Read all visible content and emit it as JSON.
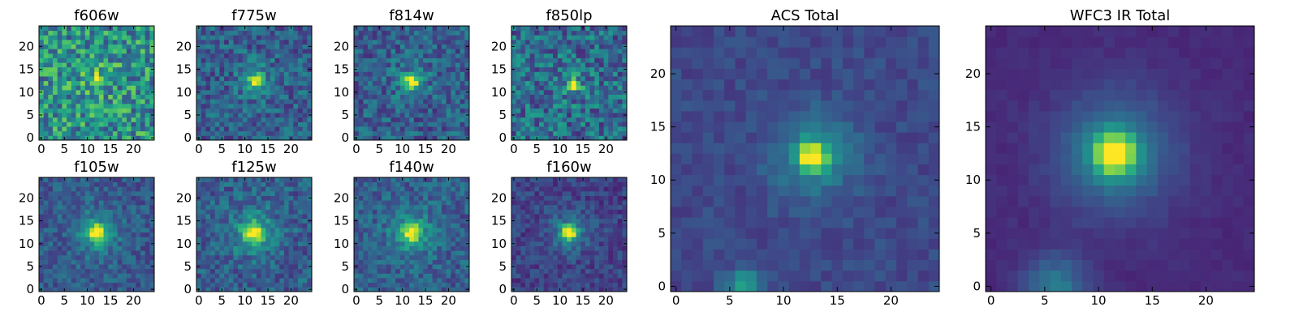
{
  "figure": {
    "background": "#ffffff",
    "colormap": "viridis",
    "colormap_stops": [
      "#440154",
      "#482878",
      "#3e4a89",
      "#31688e",
      "#26828e",
      "#1f9e89",
      "#35b779",
      "#6ece58",
      "#b5de2b",
      "#fde725"
    ]
  },
  "chart_data": [
    {
      "type": "heatmap",
      "title": "f606w",
      "grid_size": 25,
      "noise": 0.55,
      "base": 0.5,
      "source": {
        "x": 12,
        "y": 12.5,
        "amp": 0.5,
        "sigma": 1.0
      },
      "halo": {
        "amp": 0.08,
        "sigma": 3.5
      },
      "xticks": [
        "0",
        "5",
        "10",
        "15",
        "20"
      ],
      "yticks": [
        "0",
        "5",
        "10",
        "15",
        "20"
      ],
      "xlim": [
        -0.5,
        24.5
      ],
      "ylim": [
        -0.5,
        24.5
      ]
    },
    {
      "type": "heatmap",
      "title": "f775w",
      "grid_size": 25,
      "noise": 0.35,
      "base": 0.3,
      "source": {
        "x": 12.5,
        "y": 12.5,
        "amp": 0.7,
        "sigma": 1.0
      },
      "halo": {
        "amp": 0.15,
        "sigma": 3.0
      },
      "xticks": [
        "0",
        "5",
        "10",
        "15",
        "20"
      ],
      "yticks": [
        "0",
        "5",
        "10",
        "15",
        "20"
      ],
      "xlim": [
        -0.5,
        24.5
      ],
      "ylim": [
        -0.5,
        24.5
      ]
    },
    {
      "type": "heatmap",
      "title": "f814w",
      "grid_size": 25,
      "noise": 0.35,
      "base": 0.3,
      "source": {
        "x": 12,
        "y": 12.5,
        "amp": 0.7,
        "sigma": 1.0
      },
      "halo": {
        "amp": 0.15,
        "sigma": 3.0
      },
      "xticks": [
        "0",
        "5",
        "10",
        "15",
        "20"
      ],
      "yticks": [
        "0",
        "5",
        "10",
        "15",
        "20"
      ],
      "xlim": [
        -0.5,
        24.5
      ],
      "ylim": [
        -0.5,
        24.5
      ]
    },
    {
      "type": "heatmap",
      "title": "f850lp",
      "grid_size": 25,
      "noise": 0.45,
      "base": 0.35,
      "source": {
        "x": 13,
        "y": 11.5,
        "amp": 0.65,
        "sigma": 0.8
      },
      "halo": {
        "amp": 0.12,
        "sigma": 2.5
      },
      "xticks": [
        "0",
        "5",
        "10",
        "15",
        "20"
      ],
      "yticks": [
        "0",
        "5",
        "10",
        "15",
        "20"
      ],
      "xlim": [
        -0.5,
        24.5
      ],
      "ylim": [
        -0.5,
        24.5
      ]
    },
    {
      "type": "heatmap",
      "title": "f105w",
      "grid_size": 25,
      "noise": 0.25,
      "base": 0.28,
      "source": {
        "x": 12,
        "y": 12.5,
        "amp": 0.6,
        "sigma": 1.2
      },
      "halo": {
        "amp": 0.25,
        "sigma": 3.5
      },
      "xticks": [
        "0",
        "5",
        "10",
        "15",
        "20"
      ],
      "yticks": [
        "0",
        "5",
        "10",
        "15",
        "20"
      ],
      "xlim": [
        -0.5,
        24.5
      ],
      "ylim": [
        -0.5,
        24.5
      ]
    },
    {
      "type": "heatmap",
      "title": "f125w",
      "grid_size": 25,
      "noise": 0.3,
      "base": 0.3,
      "source": {
        "x": 12,
        "y": 12.5,
        "amp": 0.6,
        "sigma": 1.3
      },
      "halo": {
        "amp": 0.25,
        "sigma": 3.5
      },
      "xticks": [
        "0",
        "5",
        "10",
        "15",
        "20"
      ],
      "yticks": [
        "0",
        "5",
        "10",
        "15",
        "20"
      ],
      "xlim": [
        -0.5,
        24.5
      ],
      "ylim": [
        -0.5,
        24.5
      ]
    },
    {
      "type": "heatmap",
      "title": "f140w",
      "grid_size": 25,
      "noise": 0.28,
      "base": 0.3,
      "source": {
        "x": 12,
        "y": 12.5,
        "amp": 0.6,
        "sigma": 1.2
      },
      "halo": {
        "amp": 0.25,
        "sigma": 3.5
      },
      "xticks": [
        "0",
        "5",
        "10",
        "15",
        "20"
      ],
      "yticks": [
        "0",
        "5",
        "10",
        "15",
        "20"
      ],
      "xlim": [
        -0.5,
        24.5
      ],
      "ylim": [
        -0.5,
        24.5
      ]
    },
    {
      "type": "heatmap",
      "title": "f160w",
      "grid_size": 25,
      "noise": 0.22,
      "base": 0.2,
      "source": {
        "x": 12,
        "y": 12.5,
        "amp": 0.7,
        "sigma": 1.1
      },
      "halo": {
        "amp": 0.25,
        "sigma": 3.0
      },
      "xticks": [
        "0",
        "5",
        "10",
        "15",
        "20"
      ],
      "yticks": [
        "0",
        "5",
        "10",
        "15",
        "20"
      ],
      "xlim": [
        -0.5,
        24.5
      ],
      "ylim": [
        -0.5,
        24.5
      ]
    },
    {
      "type": "heatmap",
      "title": "ACS Total",
      "grid_size": 25,
      "noise": 0.12,
      "base": 0.22,
      "source": {
        "x": 12.8,
        "y": 12.2,
        "amp": 0.75,
        "sigma": 0.9
      },
      "halo": {
        "amp": 0.25,
        "sigma": 2.8
      },
      "secondary": {
        "x": 6.5,
        "y": 0,
        "amp": 0.35,
        "sigma": 1.2
      },
      "xticks": [
        "0",
        "5",
        "10",
        "15",
        "20"
      ],
      "yticks": [
        "0",
        "5",
        "10",
        "15",
        "20"
      ],
      "xlim": [
        -0.5,
        24.5
      ],
      "ylim": [
        -0.5,
        24.5
      ]
    },
    {
      "type": "heatmap",
      "title": "WFC3 IR Total",
      "grid_size": 25,
      "noise": 0.05,
      "base": 0.12,
      "source": {
        "x": 11.5,
        "y": 12.5,
        "amp": 0.75,
        "sigma": 1.4
      },
      "halo": {
        "amp": 0.3,
        "sigma": 4.0
      },
      "secondary": {
        "x": 6,
        "y": 0,
        "amp": 0.3,
        "sigma": 2.0
      },
      "xticks": [
        "0",
        "5",
        "10",
        "15",
        "20"
      ],
      "yticks": [
        "0",
        "5",
        "10",
        "15",
        "20"
      ],
      "xlim": [
        -0.5,
        24.5
      ],
      "ylim": [
        -0.5,
        24.5
      ]
    }
  ]
}
